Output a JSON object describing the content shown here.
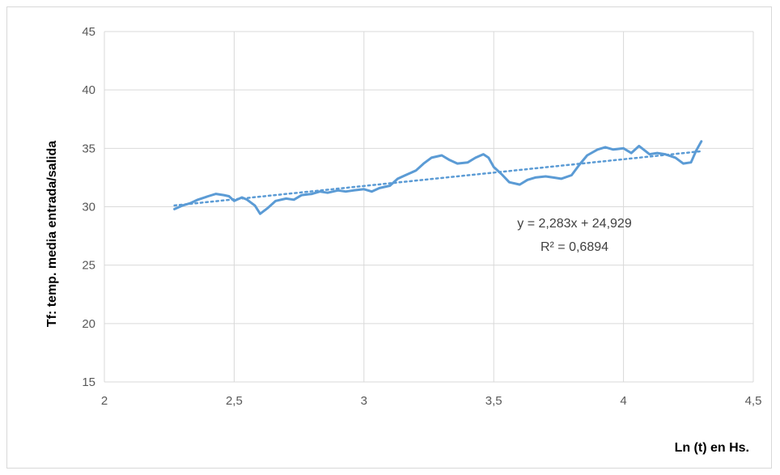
{
  "chart_data": {
    "type": "scatter",
    "title": "",
    "xlabel": "Ln (t) en Hs.",
    "ylabel": "Tf: temp. media entrada/salida",
    "xlim": [
      2,
      4.5
    ],
    "ylim": [
      15,
      45
    ],
    "x_ticks": [
      2,
      2.5,
      3,
      3.5,
      4,
      4.5
    ],
    "y_ticks": [
      15,
      20,
      25,
      30,
      35,
      40,
      45
    ],
    "x_tick_labels": [
      "2",
      "2,5",
      "3",
      "3,5",
      "4",
      "4,5"
    ],
    "y_tick_labels": [
      "15",
      "20",
      "25",
      "30",
      "35",
      "40",
      "45"
    ],
    "grid": true,
    "series": [
      {
        "color": "#5b9bd5",
        "style": "solid line",
        "x": [
          2.27,
          2.3,
          2.33,
          2.36,
          2.4,
          2.43,
          2.46,
          2.48,
          2.5,
          2.53,
          2.55,
          2.58,
          2.6,
          2.63,
          2.66,
          2.7,
          2.73,
          2.76,
          2.8,
          2.83,
          2.86,
          2.9,
          2.93,
          2.96,
          3.0,
          3.03,
          3.06,
          3.1,
          3.13,
          3.16,
          3.2,
          3.23,
          3.26,
          3.3,
          3.33,
          3.36,
          3.4,
          3.43,
          3.46,
          3.48,
          3.5,
          3.53,
          3.56,
          3.6,
          3.63,
          3.66,
          3.7,
          3.73,
          3.76,
          3.8,
          3.83,
          3.86,
          3.9,
          3.93,
          3.96,
          4.0,
          4.03,
          4.06,
          4.1,
          4.13,
          4.16,
          4.2,
          4.23,
          4.26,
          4.28,
          4.3
        ],
        "y": [
          29.8,
          30.1,
          30.3,
          30.6,
          30.9,
          31.1,
          31.0,
          30.9,
          30.5,
          30.8,
          30.6,
          30.1,
          29.4,
          29.9,
          30.5,
          30.7,
          30.6,
          31.0,
          31.1,
          31.3,
          31.2,
          31.4,
          31.3,
          31.4,
          31.5,
          31.3,
          31.6,
          31.8,
          32.4,
          32.7,
          33.1,
          33.7,
          34.2,
          34.4,
          34.0,
          33.7,
          33.8,
          34.2,
          34.5,
          34.2,
          33.4,
          32.8,
          32.1,
          31.9,
          32.3,
          32.5,
          32.6,
          32.5,
          32.4,
          32.7,
          33.6,
          34.4,
          34.9,
          35.1,
          34.9,
          35.0,
          34.6,
          35.2,
          34.5,
          34.6,
          34.5,
          34.2,
          33.7,
          33.8,
          34.8,
          35.6
        ]
      },
      {
        "color": "#5b9bd5",
        "style": "dotted linear trendline",
        "x": [
          2.27,
          4.3
        ],
        "y": [
          30.11,
          34.75
        ]
      }
    ],
    "annotations": {
      "equation": "y = 2,283x + 24,929",
      "r_squared": "R² = 0,6894"
    }
  }
}
